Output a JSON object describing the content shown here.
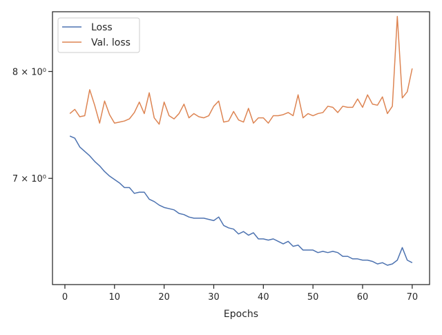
{
  "chart_data": {
    "type": "line",
    "title": "",
    "xlabel": "Epochs",
    "ylabel": "",
    "yscale": "log",
    "xlim": [
      -2.5,
      73.5
    ],
    "ylim": [
      6.13,
      8.62
    ],
    "grid": false,
    "legend_position": "top-left",
    "x_ticks": [
      0,
      10,
      20,
      30,
      40,
      50,
      60,
      70
    ],
    "x_tick_labels": [
      "0",
      "10",
      "20",
      "30",
      "40",
      "50",
      "60",
      "70"
    ],
    "y_ticks": [
      7,
      8
    ],
    "y_tick_labels": [
      "7 × 10⁰",
      "8 × 10⁰"
    ],
    "x": [
      1,
      2,
      3,
      4,
      5,
      6,
      7,
      8,
      9,
      10,
      11,
      12,
      13,
      14,
      15,
      16,
      17,
      18,
      19,
      20,
      21,
      22,
      23,
      24,
      25,
      26,
      27,
      28,
      29,
      30,
      31,
      32,
      33,
      34,
      35,
      36,
      37,
      38,
      39,
      40,
      41,
      42,
      43,
      44,
      45,
      46,
      47,
      48,
      49,
      50,
      51,
      52,
      53,
      54,
      55,
      56,
      57,
      58,
      59,
      60,
      61,
      62,
      63,
      64,
      65,
      66,
      67,
      68,
      69,
      70
    ],
    "series": [
      {
        "name": "Loss",
        "color": "#4c72b0",
        "values": [
          7.38,
          7.36,
          7.28,
          7.24,
          7.2,
          7.15,
          7.11,
          7.06,
          7.02,
          6.99,
          6.96,
          6.92,
          6.92,
          6.87,
          6.88,
          6.88,
          6.82,
          6.8,
          6.77,
          6.75,
          6.74,
          6.73,
          6.7,
          6.69,
          6.67,
          6.66,
          6.66,
          6.66,
          6.65,
          6.64,
          6.67,
          6.6,
          6.58,
          6.57,
          6.53,
          6.55,
          6.52,
          6.54,
          6.49,
          6.49,
          6.48,
          6.49,
          6.47,
          6.45,
          6.47,
          6.43,
          6.44,
          6.4,
          6.4,
          6.4,
          6.38,
          6.39,
          6.38,
          6.39,
          6.38,
          6.35,
          6.35,
          6.33,
          6.33,
          6.32,
          6.32,
          6.31,
          6.29,
          6.3,
          6.28,
          6.29,
          6.32,
          6.42,
          6.32,
          6.3
        ]
      },
      {
        "name": "Val. loss",
        "color": "#dd8452",
        "values": [
          7.59,
          7.63,
          7.56,
          7.57,
          7.82,
          7.67,
          7.5,
          7.71,
          7.58,
          7.5,
          7.51,
          7.52,
          7.54,
          7.6,
          7.7,
          7.59,
          7.79,
          7.55,
          7.49,
          7.7,
          7.57,
          7.54,
          7.59,
          7.68,
          7.55,
          7.59,
          7.56,
          7.55,
          7.57,
          7.66,
          7.71,
          7.51,
          7.52,
          7.61,
          7.53,
          7.51,
          7.64,
          7.5,
          7.55,
          7.55,
          7.5,
          7.57,
          7.57,
          7.58,
          7.6,
          7.57,
          7.77,
          7.55,
          7.59,
          7.57,
          7.59,
          7.6,
          7.66,
          7.65,
          7.6,
          7.66,
          7.65,
          7.65,
          7.73,
          7.65,
          7.77,
          7.68,
          7.67,
          7.75,
          7.59,
          7.66,
          8.57,
          7.74,
          7.8,
          8.03
        ]
      }
    ]
  }
}
